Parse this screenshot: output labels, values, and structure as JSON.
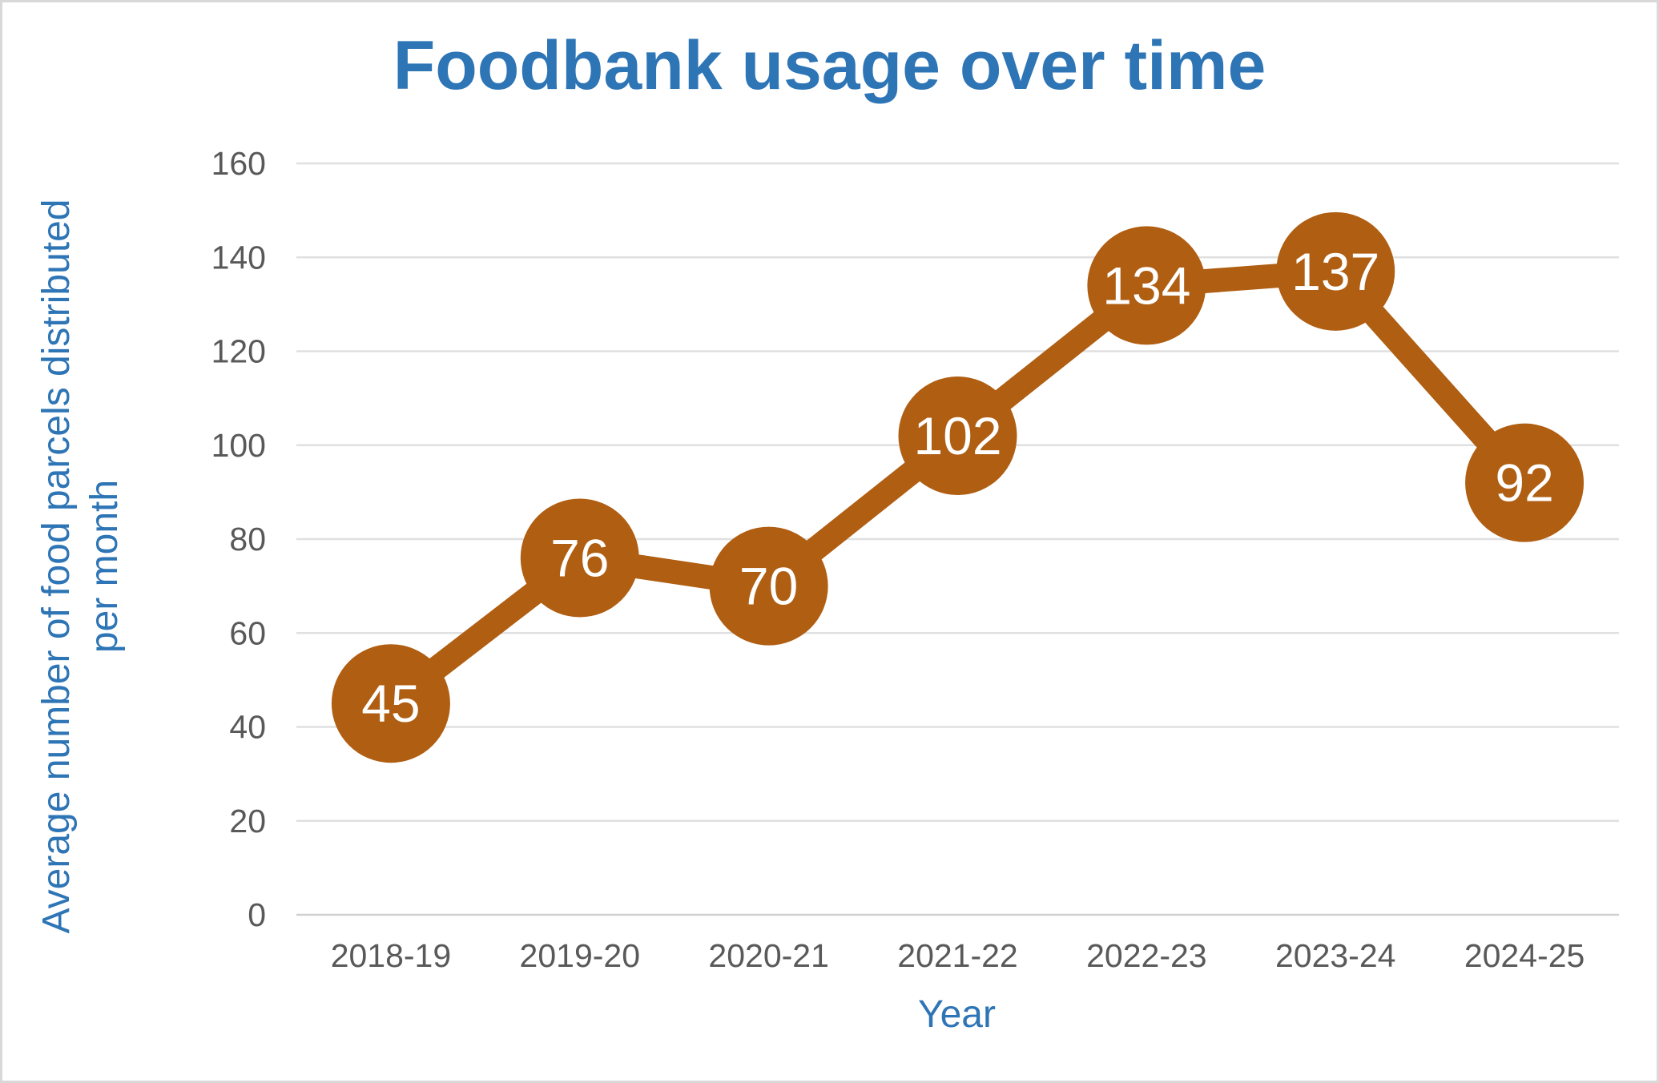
{
  "chart_data": {
    "type": "line",
    "title": "Foodbank usage over time",
    "categories": [
      "2018-19",
      "2019-20",
      "2020-21",
      "2021-22",
      "2022-23",
      "2023-24",
      "2024-25"
    ],
    "values": [
      45,
      76,
      70,
      102,
      134,
      137,
      92
    ],
    "data_labels": [
      "45",
      "76",
      "70",
      "102",
      "134",
      "137",
      "92"
    ],
    "xlabel": "Year",
    "ylabel": "Average number of food parcels distributed per month",
    "ylabel_line1": "Average number of food parcels distributed",
    "ylabel_line2": "per month",
    "ylim": [
      0,
      160
    ],
    "yticks": [
      0,
      20,
      40,
      60,
      80,
      100,
      120,
      140,
      160
    ],
    "grid": true,
    "legend": "none",
    "colors": {
      "series": "#B05E12",
      "title_blue": "#2E75B6",
      "tick_gray": "#595959",
      "gridline": "#E0E0E0",
      "axis_line": "#D0D0D0",
      "data_label_text": "#FFFFFF",
      "background": "#FFFFFF",
      "border": "#D8D8D8"
    }
  }
}
